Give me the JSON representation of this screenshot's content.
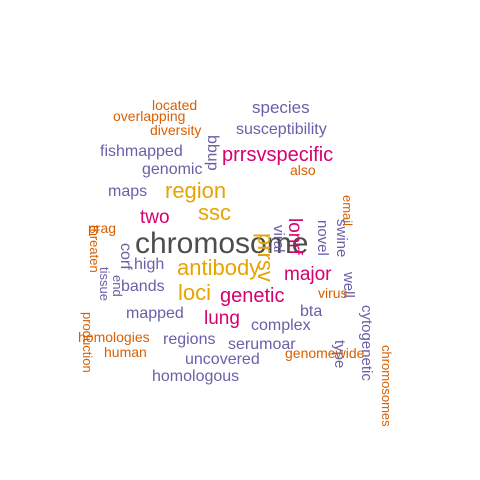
{
  "palette": {
    "dark": "#4d4d4d",
    "gold": "#e6a400",
    "magenta": "#d6006f",
    "purple": "#6a60a8",
    "orange": "#d95f02"
  },
  "words": [
    {
      "text": "chromosome",
      "color": "dark"
    },
    {
      "text": "antibody",
      "color": "gold"
    },
    {
      "text": "region",
      "color": "gold"
    },
    {
      "text": "loci",
      "color": "gold"
    },
    {
      "text": "ssc",
      "color": "gold"
    },
    {
      "text": "prrsv",
      "color": "gold"
    },
    {
      "text": "genetic",
      "color": "magenta"
    },
    {
      "text": "prrsvspecific",
      "color": "magenta"
    },
    {
      "text": "major",
      "color": "magenta"
    },
    {
      "text": "two",
      "color": "magenta"
    },
    {
      "text": "lung",
      "color": "magenta"
    },
    {
      "text": "lonrf",
      "color": "magenta"
    },
    {
      "text": "species",
      "color": "purple"
    },
    {
      "text": "susceptibility",
      "color": "purple"
    },
    {
      "text": "fishmapped",
      "color": "purple"
    },
    {
      "text": "genomic",
      "color": "purple"
    },
    {
      "text": "maps",
      "color": "purple"
    },
    {
      "text": "high",
      "color": "purple"
    },
    {
      "text": "bands",
      "color": "purple"
    },
    {
      "text": "mapped",
      "color": "purple"
    },
    {
      "text": "regions",
      "color": "purple"
    },
    {
      "text": "serumoar",
      "color": "purple"
    },
    {
      "text": "complex",
      "color": "purple"
    },
    {
      "text": "uncovered",
      "color": "purple"
    },
    {
      "text": "homologous",
      "color": "purple"
    },
    {
      "text": "bta",
      "color": "purple"
    },
    {
      "text": "bbup",
      "color": "purple"
    },
    {
      "text": "corf",
      "color": "purple"
    },
    {
      "text": "viral",
      "color": "purple"
    },
    {
      "text": "novel",
      "color": "purple"
    },
    {
      "text": "swine",
      "color": "purple"
    },
    {
      "text": "well",
      "color": "purple"
    },
    {
      "text": "cytogenetic",
      "color": "purple"
    },
    {
      "text": "type",
      "color": "purple"
    },
    {
      "text": "tissue",
      "color": "purple"
    },
    {
      "text": "end",
      "color": "purple"
    },
    {
      "text": "located",
      "color": "orange"
    },
    {
      "text": "overlapping",
      "color": "orange"
    },
    {
      "text": "diversity",
      "color": "orange"
    },
    {
      "text": "also",
      "color": "orange"
    },
    {
      "text": "email",
      "color": "orange"
    },
    {
      "text": "threaten",
      "color": "orange"
    },
    {
      "text": "prag",
      "color": "orange"
    },
    {
      "text": "production",
      "color": "orange"
    },
    {
      "text": "homologies",
      "color": "orange"
    },
    {
      "text": "human",
      "color": "orange"
    },
    {
      "text": "virus",
      "color": "orange"
    },
    {
      "text": "genomewide",
      "color": "orange"
    },
    {
      "text": "chromosomes",
      "color": "orange"
    }
  ]
}
